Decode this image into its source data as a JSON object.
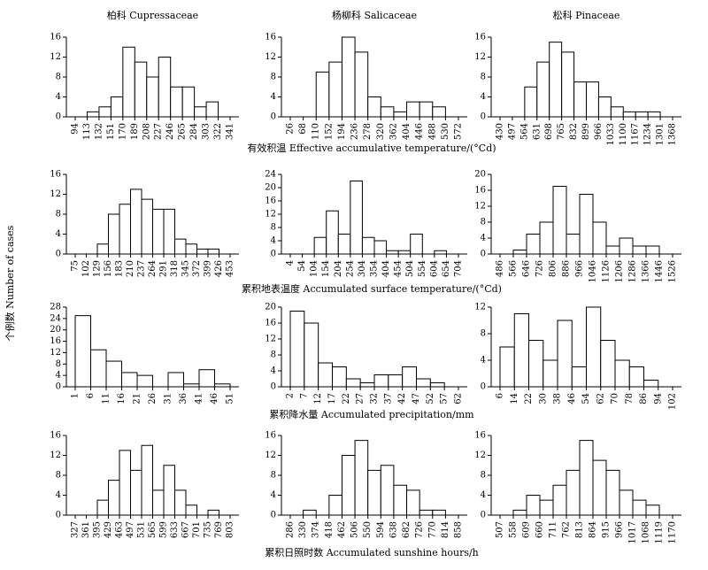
{
  "figure": {
    "column_titles": [
      "柏科 Cupressaceae",
      "杨柳科 Salicaceae",
      "松科 Pinaceae"
    ],
    "xlabels": [
      "有效积温 Effective accumulative temperature/(°Cd)",
      "累积地表温度 Accumulated surface temperature/(°Cd)",
      "累积降水量 Accumulated precipitation/mm",
      "累积日照时数 Accumulated sunshine hours/h"
    ],
    "ylabel": "个例数 Number of cases"
  },
  "chart_data": [
    {
      "type": "histogram",
      "color": "#ffffff",
      "bins": [
        94,
        113,
        132,
        151,
        170,
        189,
        208,
        227,
        246,
        265,
        284,
        303,
        322,
        341
      ],
      "counts": [
        0,
        1,
        2,
        4,
        14,
        11,
        8,
        12,
        6,
        6,
        2,
        3,
        0
      ],
      "xlim": [
        94,
        341
      ],
      "xticks": [
        94,
        113,
        132,
        151,
        170,
        189,
        208,
        227,
        246,
        265,
        284,
        303,
        322,
        341
      ],
      "ylim": [
        0,
        16
      ],
      "yticks": [
        0,
        4,
        8,
        12,
        16
      ]
    },
    {
      "type": "histogram",
      "color": "#ffffff",
      "bins": [
        26,
        68,
        110,
        152,
        194,
        236,
        278,
        320,
        362,
        404,
        446,
        488,
        530,
        572
      ],
      "counts": [
        0,
        0,
        9,
        11,
        16,
        13,
        4,
        2,
        1,
        3,
        3,
        2,
        0
      ],
      "xlim": [
        26,
        572
      ],
      "xticks": [
        26,
        68,
        110,
        152,
        194,
        236,
        278,
        320,
        362,
        404,
        446,
        488,
        530,
        572
      ],
      "ylim": [
        0,
        16
      ],
      "yticks": [
        0,
        4,
        8,
        12,
        16
      ]
    },
    {
      "type": "histogram",
      "color": "#ffffff",
      "bins": [
        430,
        497,
        564,
        631,
        698,
        765,
        832,
        899,
        966,
        1033,
        1100,
        1167,
        1234,
        1301,
        1368
      ],
      "counts": [
        0,
        0,
        6,
        11,
        15,
        13,
        7,
        7,
        4,
        2,
        1,
        1,
        1,
        0
      ],
      "xlim": [
        430,
        1368
      ],
      "xticks": [
        430,
        497,
        564,
        631,
        698,
        765,
        832,
        899,
        966,
        1033,
        1100,
        1167,
        1234,
        1301,
        1368
      ],
      "ylim": [
        0,
        16
      ],
      "yticks": [
        0,
        4,
        8,
        12,
        16
      ]
    },
    {
      "type": "histogram",
      "color": "#ffffff",
      "bins": [
        75,
        102,
        129,
        156,
        183,
        210,
        237,
        264,
        291,
        318,
        345,
        372,
        399,
        426,
        453
      ],
      "counts": [
        0,
        0,
        2,
        8,
        10,
        13,
        11,
        9,
        9,
        3,
        2,
        1,
        1,
        0
      ],
      "xlim": [
        75,
        453
      ],
      "xticks": [
        75,
        102,
        129,
        156,
        183,
        210,
        237,
        264,
        291,
        318,
        345,
        372,
        399,
        426,
        453
      ],
      "ylim": [
        0,
        16
      ],
      "yticks": [
        0,
        4,
        8,
        12,
        16
      ]
    },
    {
      "type": "histogram",
      "color": "#ffffff",
      "bins": [
        4,
        54,
        104,
        154,
        204,
        254,
        304,
        354,
        404,
        454,
        504,
        554,
        604,
        654,
        704
      ],
      "counts": [
        0,
        0,
        5,
        13,
        6,
        22,
        5,
        4,
        1,
        1,
        6,
        0,
        1,
        0
      ],
      "xlim": [
        4,
        704
      ],
      "xticks": [
        4,
        54,
        104,
        154,
        204,
        254,
        304,
        354,
        404,
        454,
        504,
        554,
        604,
        654,
        704
      ],
      "ylim": [
        0,
        24
      ],
      "yticks": [
        0,
        4,
        8,
        12,
        16,
        20,
        24
      ]
    },
    {
      "type": "histogram",
      "color": "#ffffff",
      "bins": [
        486,
        566,
        646,
        726,
        806,
        886,
        966,
        1046,
        1126,
        1206,
        1286,
        1366,
        1446,
        1526
      ],
      "counts": [
        0,
        1,
        5,
        8,
        17,
        5,
        15,
        8,
        2,
        4,
        2,
        2,
        0
      ],
      "xlim": [
        486,
        1526
      ],
      "xticks": [
        486,
        566,
        646,
        726,
        806,
        886,
        966,
        1046,
        1126,
        1206,
        1286,
        1366,
        1446,
        1526
      ],
      "ylim": [
        0,
        20
      ],
      "yticks": [
        0,
        4,
        8,
        12,
        16,
        20
      ]
    },
    {
      "type": "histogram",
      "color": "#ffffff",
      "bins": [
        1,
        6,
        11,
        16,
        21,
        26,
        31,
        36,
        41,
        46,
        51
      ],
      "counts": [
        25,
        13,
        9,
        5,
        4,
        0,
        5,
        1,
        6,
        1
      ],
      "xlim": [
        1,
        51
      ],
      "xticks": [
        1,
        6,
        11,
        16,
        21,
        26,
        31,
        36,
        41,
        46,
        51
      ],
      "ylim": [
        0,
        28
      ],
      "yticks": [
        0,
        4,
        8,
        12,
        16,
        20,
        24,
        28
      ]
    },
    {
      "type": "histogram",
      "color": "#ffffff",
      "bins": [
        2,
        7,
        12,
        17,
        22,
        27,
        32,
        37,
        42,
        47,
        52,
        57,
        62
      ],
      "counts": [
        19,
        16,
        6,
        5,
        2,
        1,
        3,
        3,
        5,
        2,
        1,
        0
      ],
      "xlim": [
        2,
        62
      ],
      "xticks": [
        2,
        7,
        12,
        17,
        22,
        27,
        32,
        37,
        42,
        47,
        52,
        57,
        62
      ],
      "ylim": [
        0,
        20
      ],
      "yticks": [
        0,
        4,
        8,
        12,
        16,
        20
      ]
    },
    {
      "type": "histogram",
      "color": "#ffffff",
      "bins": [
        6,
        14,
        22,
        30,
        38,
        46,
        54,
        62,
        70,
        78,
        86,
        94,
        102
      ],
      "counts": [
        6,
        11,
        7,
        4,
        10,
        3,
        12,
        7,
        4,
        3,
        1,
        0
      ],
      "xlim": [
        6,
        102
      ],
      "xticks": [
        6,
        14,
        22,
        30,
        38,
        46,
        54,
        62,
        70,
        78,
        86,
        94,
        102
      ],
      "ylim": [
        0,
        12
      ],
      "yticks": [
        0,
        4,
        8,
        12
      ]
    },
    {
      "type": "histogram",
      "color": "#ffffff",
      "bins": [
        327,
        361,
        395,
        429,
        463,
        497,
        531,
        565,
        599,
        633,
        667,
        701,
        735,
        769,
        803
      ],
      "counts": [
        0,
        0,
        3,
        7,
        13,
        9,
        14,
        5,
        10,
        5,
        2,
        0,
        1,
        0
      ],
      "xlim": [
        327,
        803
      ],
      "xticks": [
        327,
        361,
        395,
        429,
        463,
        497,
        531,
        565,
        599,
        633,
        667,
        701,
        735,
        769,
        803
      ],
      "ylim": [
        0,
        16
      ],
      "yticks": [
        0,
        4,
        8,
        12,
        16
      ]
    },
    {
      "type": "histogram",
      "color": "#ffffff",
      "bins": [
        286,
        330,
        374,
        418,
        462,
        506,
        550,
        594,
        638,
        682,
        726,
        770,
        814,
        858
      ],
      "counts": [
        0,
        1,
        0,
        4,
        12,
        15,
        9,
        10,
        6,
        5,
        1,
        1,
        0
      ],
      "xlim": [
        286,
        858
      ],
      "xticks": [
        286,
        330,
        374,
        418,
        462,
        506,
        550,
        594,
        638,
        682,
        726,
        770,
        814,
        858
      ],
      "ylim": [
        0,
        16
      ],
      "yticks": [
        0,
        4,
        8,
        12,
        16
      ]
    },
    {
      "type": "histogram",
      "color": "#ffffff",
      "bins": [
        507,
        558,
        609,
        660,
        711,
        762,
        813,
        864,
        915,
        966,
        1017,
        1068,
        1119,
        1170
      ],
      "counts": [
        0,
        1,
        4,
        3,
        6,
        9,
        15,
        11,
        9,
        5,
        3,
        2,
        0
      ],
      "xlim": [
        507,
        1170
      ],
      "xticks": [
        507,
        558,
        609,
        660,
        711,
        762,
        813,
        864,
        915,
        966,
        1017,
        1068,
        1119,
        1170
      ],
      "ylim": [
        0,
        16
      ],
      "yticks": [
        0,
        4,
        8,
        12,
        16
      ]
    }
  ]
}
